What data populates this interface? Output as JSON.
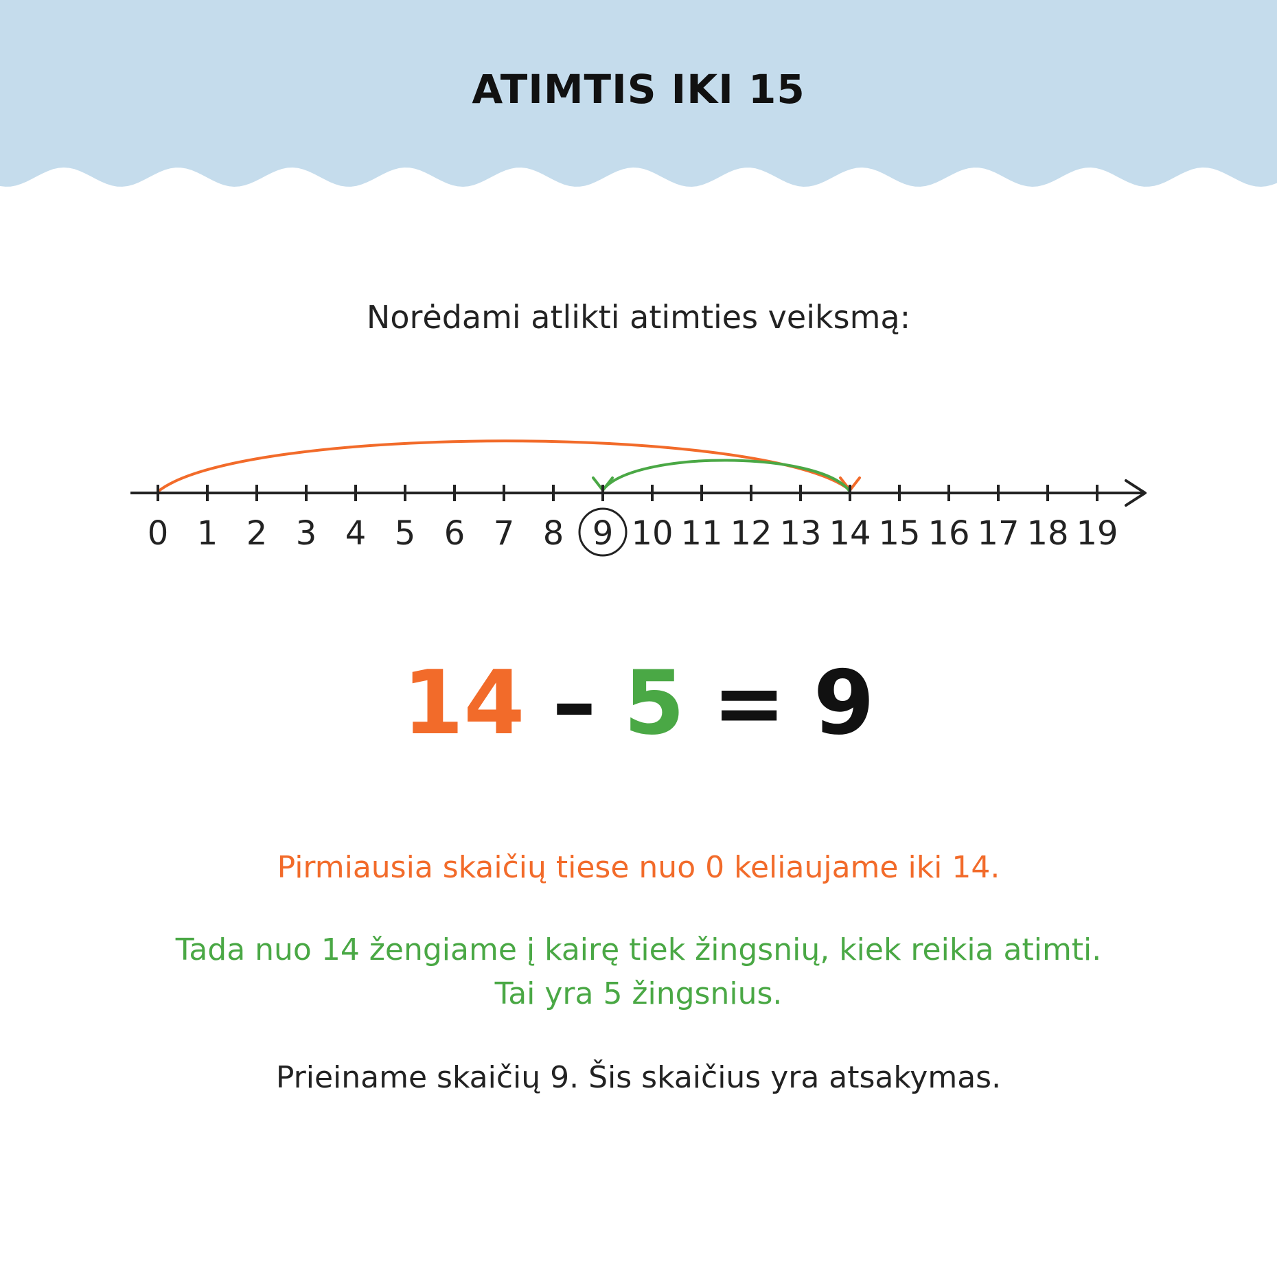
{
  "header": {
    "title": "ATIMTIS IKI 15",
    "band_color": "#c5dcec"
  },
  "intro": "Norėdami atlikti atimties veiksmą:",
  "number_line": {
    "ticks": [
      0,
      1,
      2,
      3,
      4,
      5,
      6,
      7,
      8,
      9,
      10,
      11,
      12,
      13,
      14,
      15,
      16,
      17,
      18,
      19
    ],
    "circled": 9,
    "hops": [
      {
        "from": 0,
        "to": 14,
        "color": "#f26b2a"
      },
      {
        "from": 14,
        "to": 9,
        "color": "#4aa845"
      }
    ]
  },
  "equation": {
    "minuend": "14",
    "minus": "–",
    "subtrahend": "5",
    "equals": "=",
    "result": "9"
  },
  "colors": {
    "orange": "#f26b2a",
    "green": "#4aa845",
    "text": "#222222"
  },
  "explanation": {
    "step1": "Pirmiausia skaičių tiese nuo 0 keliaujame iki 14.",
    "step2_line1": "Tada nuo 14 žengiame į kairę tiek žingsnių, kiek reikia atimti.",
    "step2_line2": "Tai yra 5 žingsnius.",
    "step3": "Prieiname skaičių 9. Šis skaičius yra atsakymas."
  }
}
